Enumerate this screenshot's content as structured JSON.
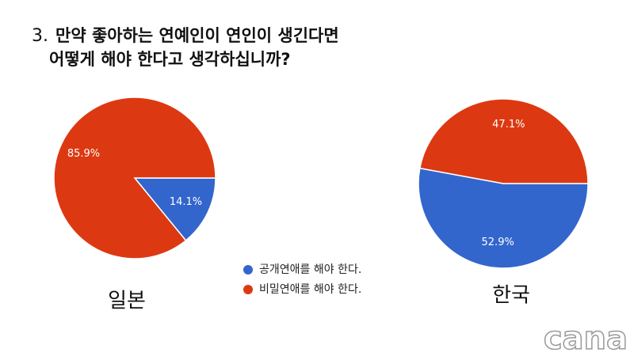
{
  "title": {
    "number": "3.",
    "lines": [
      "만약 좋아하는 연예인이 연인이 생긴다면",
      "어떻게 해야 한다고  생각하십니까?"
    ]
  },
  "legend": {
    "labels": [
      "공개연애를 해야 한다.",
      "비밀연애를 해야 한다."
    ],
    "colors": [
      "#3366cc",
      "#dc3912"
    ]
  },
  "chart_data": [
    {
      "type": "pie",
      "label": "일본",
      "values": [
        14.1,
        85.9
      ],
      "value_labels": [
        "14.1%",
        "85.9%"
      ]
    },
    {
      "type": "pie",
      "label": "한국",
      "values": [
        52.9,
        47.1
      ],
      "value_labels": [
        "52.9%",
        "47.1%"
      ]
    }
  ],
  "watermark": "cana"
}
